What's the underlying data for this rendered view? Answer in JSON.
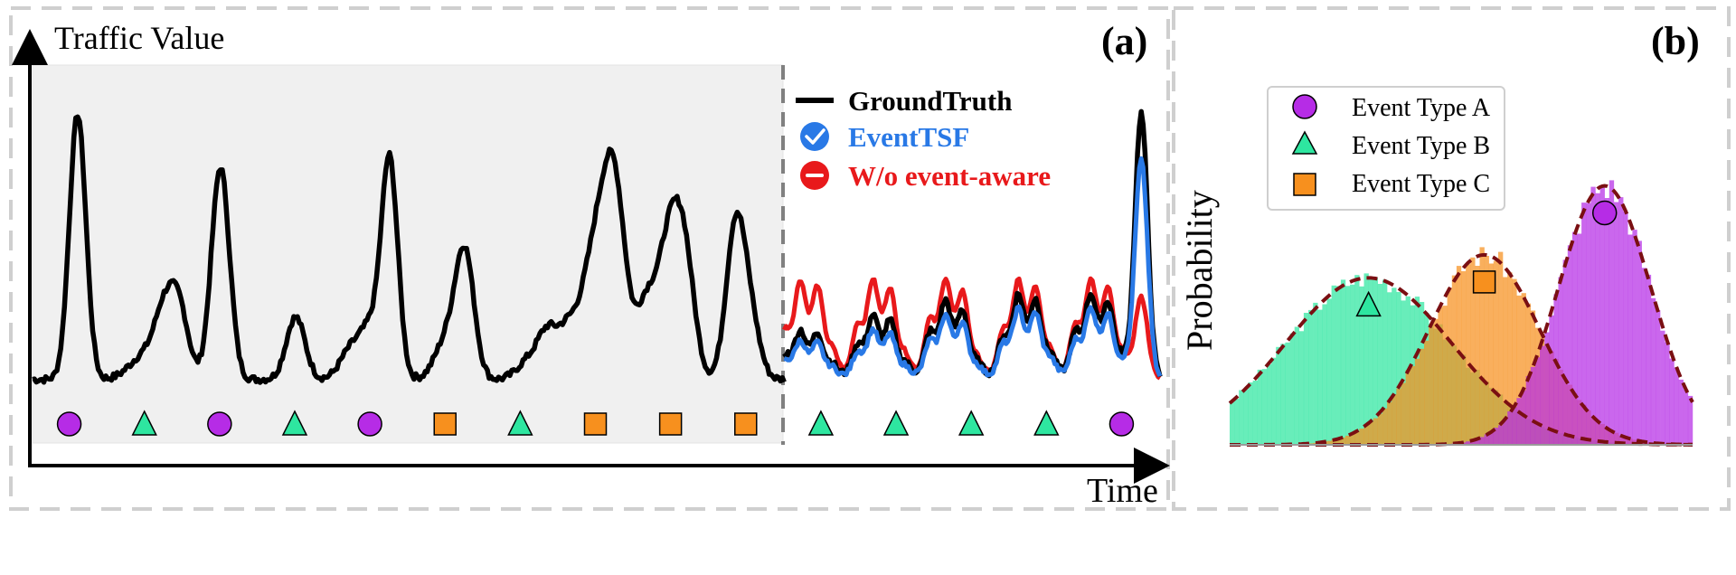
{
  "colors": {
    "frame": "#cfcfcf",
    "history_bg": "#f0f0f0",
    "ground_truth": "#000000",
    "eventtsf": "#2979e6",
    "wo_event": "#e8191b",
    "event_a": "#b62ce6",
    "event_b": "#2ee6a0",
    "event_c": "#f7901e",
    "gaussian": "#7a0f12"
  },
  "panel_a": {
    "label": "(a)",
    "ylabel": "Traffic Value",
    "xlabel": "Time",
    "legend": [
      {
        "name": "GroundTruth",
        "color": "#000000",
        "icon": "line-icon"
      },
      {
        "name": "EventTSF",
        "color": "#2979e6",
        "icon": "check-circle-icon"
      },
      {
        "name": "W/o event-aware",
        "color": "#e8191b",
        "icon": "minus-circle-icon"
      }
    ]
  },
  "panel_b": {
    "label": "(b)",
    "ylabel": "Probability",
    "legend": [
      {
        "name": "Event Type A",
        "marker": "circle",
        "color": "#b62ce6"
      },
      {
        "name": "Event Type B",
        "marker": "triangle",
        "color": "#2ee6a0"
      },
      {
        "name": "Event Type C",
        "marker": "square",
        "color": "#f7901e"
      }
    ]
  },
  "chart_data": [
    {
      "type": "line",
      "title": "(a)",
      "xlabel": "Time",
      "ylabel": "Traffic Value",
      "xlim": [
        0,
        300
      ],
      "ylim": [
        0,
        100
      ],
      "forecast_start": 200,
      "history": {
        "name": "GroundTruth",
        "baseline": 3,
        "peaks": [
          [
            12,
            85,
            2.2
          ],
          [
            30,
            8,
            4
          ],
          [
            35,
            18,
            2.5
          ],
          [
            39,
            22,
            2.5
          ],
          [
            50,
            68,
            2.4
          ],
          [
            70,
            20,
            2.5
          ],
          [
            85,
            10,
            3
          ],
          [
            90,
            14,
            2.5
          ],
          [
            95,
            70,
            2.2
          ],
          [
            110,
            12,
            3
          ],
          [
            115,
            40,
            2.5
          ],
          [
            132,
            6,
            3
          ],
          [
            137,
            14,
            2.5
          ],
          [
            142,
            12,
            2.5
          ],
          [
            150,
            42,
            4
          ],
          [
            155,
            50,
            3
          ],
          [
            163,
            20,
            2.5
          ],
          [
            170,
            50,
            3.5
          ],
          [
            174,
            20,
            2.5
          ],
          [
            187,
            48,
            2.5
          ],
          [
            191,
            18,
            2.5
          ]
        ]
      },
      "forecast": {
        "baseline": 3,
        "groundtruth_bumps": [
          [
            206,
            14
          ],
          [
            225,
            18
          ],
          [
            244,
            22
          ],
          [
            264,
            24
          ],
          [
            283,
            24
          ]
        ],
        "groundtruth_spike": [
          295,
          85
        ],
        "eventtsf_bumps": [
          [
            206,
            11
          ],
          [
            225,
            14
          ],
          [
            244,
            18
          ],
          [
            264,
            20
          ],
          [
            283,
            20
          ]
        ],
        "eventtsf_spike": [
          295,
          70
        ],
        "wo_event_bumps": [
          [
            206,
            28
          ],
          [
            225,
            28
          ],
          [
            244,
            28
          ],
          [
            264,
            28
          ],
          [
            283,
            28
          ]
        ],
        "wo_event_spike": [
          295,
          26
        ]
      },
      "event_markers": [
        {
          "x": 10,
          "type": "A"
        },
        {
          "x": 30,
          "type": "B"
        },
        {
          "x": 50,
          "type": "A"
        },
        {
          "x": 70,
          "type": "B"
        },
        {
          "x": 90,
          "type": "A"
        },
        {
          "x": 110,
          "type": "C"
        },
        {
          "x": 130,
          "type": "B"
        },
        {
          "x": 150,
          "type": "C"
        },
        {
          "x": 170,
          "type": "C"
        },
        {
          "x": 190,
          "type": "C"
        },
        {
          "x": 210,
          "type": "B"
        },
        {
          "x": 230,
          "type": "B"
        },
        {
          "x": 250,
          "type": "B"
        },
        {
          "x": 270,
          "type": "B"
        },
        {
          "x": 290,
          "type": "A"
        }
      ]
    },
    {
      "type": "bar",
      "title": "(b)",
      "ylabel": "Probability",
      "xlim": [
        0,
        100
      ],
      "ylim": [
        0,
        0.3
      ],
      "legend_position": "top-left",
      "series": [
        {
          "name": "Event Type B",
          "mean": 30,
          "std": 18,
          "amplitude": 0.145
        },
        {
          "name": "Event Type C",
          "mean": 55,
          "std": 12,
          "amplitude": 0.165
        },
        {
          "name": "Event Type A",
          "mean": 81,
          "std": 10,
          "amplitude": 0.225
        }
      ]
    }
  ]
}
